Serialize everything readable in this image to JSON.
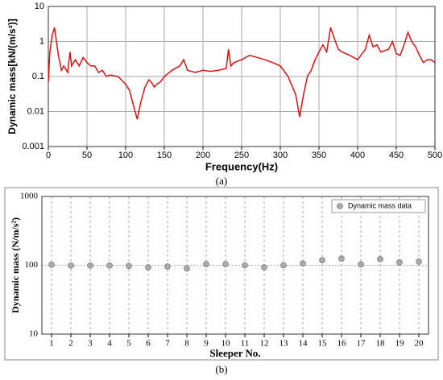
{
  "chart_data": [
    {
      "type": "line",
      "caption": "(a)",
      "x_label": "Frequency(Hz)",
      "y_label": "Dynamic mass[kN/(m/s²)]",
      "color": "#e01010",
      "log_y": true,
      "grid": true,
      "xlim": [
        0,
        500
      ],
      "xticks": [
        0,
        50,
        100,
        150,
        200,
        250,
        300,
        350,
        400,
        450,
        500
      ],
      "ylim": [
        0.001,
        10
      ],
      "yticks": [
        0.001,
        0.01,
        0.1,
        1,
        10
      ],
      "x": [
        0,
        2,
        5,
        8,
        10,
        13,
        17,
        20,
        25,
        28,
        30,
        35,
        40,
        45,
        50,
        55,
        60,
        65,
        70,
        75,
        80,
        90,
        100,
        105,
        110,
        115,
        120,
        125,
        130,
        133,
        137,
        140,
        145,
        150,
        160,
        170,
        175,
        180,
        190,
        200,
        210,
        220,
        230,
        233,
        236,
        240,
        250,
        260,
        270,
        280,
        290,
        300,
        310,
        320,
        325,
        330,
        335,
        340,
        345,
        350,
        355,
        360,
        365,
        370,
        375,
        380,
        390,
        400,
        410,
        415,
        420,
        425,
        430,
        440,
        445,
        450,
        455,
        460,
        465,
        470,
        475,
        480,
        485,
        490,
        495,
        500
      ],
      "values": [
        0.07,
        0.5,
        1.5,
        2.5,
        1.2,
        0.4,
        0.15,
        0.2,
        0.13,
        0.5,
        0.2,
        0.3,
        0.2,
        0.35,
        0.25,
        0.2,
        0.2,
        0.13,
        0.15,
        0.1,
        0.11,
        0.1,
        0.06,
        0.04,
        0.015,
        0.006,
        0.02,
        0.05,
        0.08,
        0.07,
        0.05,
        0.06,
        0.07,
        0.1,
        0.15,
        0.2,
        0.3,
        0.15,
        0.13,
        0.15,
        0.14,
        0.15,
        0.17,
        0.6,
        0.2,
        0.25,
        0.3,
        0.4,
        0.35,
        0.3,
        0.25,
        0.2,
        0.1,
        0.03,
        0.007,
        0.03,
        0.1,
        0.15,
        0.3,
        0.5,
        0.8,
        0.5,
        2.5,
        1.2,
        0.6,
        0.5,
        0.4,
        0.3,
        0.6,
        1.5,
        0.7,
        0.8,
        0.5,
        0.6,
        1.0,
        0.45,
        0.4,
        0.8,
        1.8,
        1.0,
        0.7,
        0.4,
        0.25,
        0.3,
        0.3,
        0.25
      ]
    },
    {
      "type": "scatter",
      "caption": "(b)",
      "x_label": "Sleeper No.",
      "y_label": "Dynamic mass (N/m/s²)",
      "log_y": true,
      "grid": true,
      "legend": "upper right",
      "xlim": [
        0.5,
        20.5
      ],
      "xticks": [
        1,
        2,
        3,
        4,
        5,
        6,
        7,
        8,
        9,
        10,
        11,
        12,
        13,
        14,
        15,
        16,
        17,
        18,
        19,
        20
      ],
      "ylim": [
        10,
        1000
      ],
      "yticks": [
        10,
        100,
        1000
      ],
      "x": [
        1,
        2,
        3,
        4,
        5,
        6,
        7,
        8,
        9,
        10,
        11,
        12,
        13,
        14,
        15,
        16,
        17,
        18,
        19,
        20
      ],
      "series": [
        {
          "name": "Dynamic mass data",
          "color": "#aaaaaa",
          "values": [
            102,
            99,
            99,
            99,
            98,
            93,
            96,
            90,
            104,
            104,
            100,
            93,
            100,
            106,
            118,
            125,
            103,
            123,
            110,
            113
          ]
        }
      ]
    }
  ]
}
